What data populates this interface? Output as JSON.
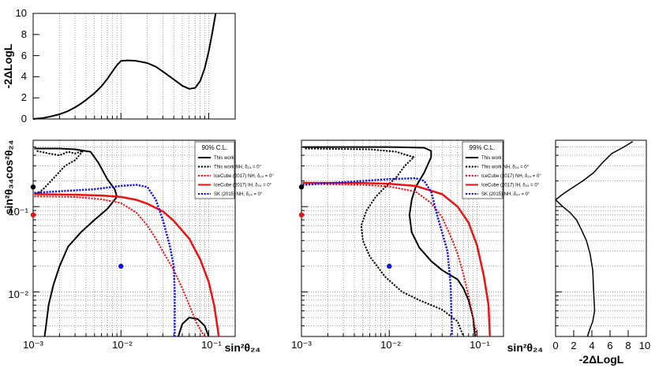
{
  "chart_data": [
    {
      "id": "top",
      "type": "line",
      "description_axis": "log x (shared with main panel), linear y",
      "xscale": "log",
      "xlim": [
        0.001,
        0.2
      ],
      "ylim": [
        0,
        10
      ],
      "yticks": [
        0,
        2,
        4,
        6,
        8,
        10
      ],
      "ylabel": "-2ΔLogL",
      "series": [
        {
          "name": "profile",
          "color": "#000000",
          "dash": "solid",
          "width": 2,
          "points": [
            [
              0.001,
              0
            ],
            [
              0.0013,
              0.1
            ],
            [
              0.0016,
              0.25
            ],
            [
              0.002,
              0.45
            ],
            [
              0.0025,
              0.75
            ],
            [
              0.003,
              1.1
            ],
            [
              0.0035,
              1.45
            ],
            [
              0.004,
              1.8
            ],
            [
              0.005,
              2.45
            ],
            [
              0.006,
              3.1
            ],
            [
              0.007,
              3.8
            ],
            [
              0.008,
              4.5
            ],
            [
              0.009,
              5.1
            ],
            [
              0.01,
              5.5
            ],
            [
              0.012,
              5.55
            ],
            [
              0.015,
              5.5
            ],
            [
              0.02,
              5.3
            ],
            [
              0.025,
              4.95
            ],
            [
              0.03,
              4.5
            ],
            [
              0.04,
              3.75
            ],
            [
              0.05,
              3.15
            ],
            [
              0.06,
              2.85
            ],
            [
              0.07,
              2.95
            ],
            [
              0.08,
              3.6
            ],
            [
              0.09,
              4.8
            ],
            [
              0.1,
              6.4
            ],
            [
              0.11,
              8.2
            ],
            [
              0.12,
              10
            ]
          ]
        }
      ]
    },
    {
      "id": "main90",
      "type": "line",
      "xscale": "log",
      "yscale": "log",
      "xlim": [
        0.001,
        0.2
      ],
      "ylim": [
        0.003,
        0.6
      ],
      "xticks": [
        0.001,
        0.01,
        0.1
      ],
      "xtick_labels": [
        "10⁻³",
        "10⁻²",
        "10⁻¹"
      ],
      "yticks": [
        0.01,
        0.1
      ],
      "ytick_labels": [
        "10⁻²",
        "10⁻¹"
      ],
      "xlabel": "sin²θ₂₄",
      "ylabel": "sin²θ₃₄cos²θ₂₄",
      "legend": {
        "title": "90% C.L.",
        "entries": [
          "This work",
          "This work NH, δ₂₄ = 0°",
          "IceCube (2017) NH, δ₂₄ = 0°",
          "IceCube (2017) IH, δ₂₄ = 0°",
          "SK (2015) NH, δ₂₄ = 0°"
        ]
      },
      "series": [
        {
          "name": "This work",
          "color": "#000000",
          "dash": "solid",
          "width": 2,
          "points": [
            [
              0.00103,
              0.48
            ],
            [
              0.002,
              0.48
            ],
            [
              0.003,
              0.47
            ],
            [
              0.0045,
              0.44
            ],
            [
              0.0055,
              0.33
            ],
            [
              0.007,
              0.21
            ],
            [
              0.0085,
              0.16
            ],
            [
              0.009,
              0.13
            ],
            [
              0.007,
              0.094
            ],
            [
              0.005,
              0.07
            ],
            [
              0.0035,
              0.05
            ],
            [
              0.0025,
              0.034
            ],
            [
              0.002,
              0.02
            ],
            [
              0.0017,
              0.012
            ],
            [
              0.0015,
              0.007
            ],
            [
              0.0014,
              0.004
            ],
            [
              0.00135,
              0.003
            ]
          ]
        },
        {
          "name": "This work lower island",
          "color": "#000000",
          "dash": "solid",
          "width": 2,
          "points": [
            [
              0.045,
              0.003
            ],
            [
              0.05,
              0.0042
            ],
            [
              0.06,
              0.005
            ],
            [
              0.075,
              0.0048
            ],
            [
              0.09,
              0.004
            ],
            [
              0.1,
              0.003
            ]
          ]
        },
        {
          "name": "This work NH, δ24 = 0°",
          "color": "#000000",
          "dash": "dotted",
          "width": 2,
          "points": [
            [
              0.0011,
              0.45
            ],
            [
              0.0015,
              0.42
            ],
            [
              0.002,
              0.4
            ],
            [
              0.0025,
              0.44
            ],
            [
              0.003,
              0.42
            ],
            [
              0.0037,
              0.45
            ],
            [
              0.003,
              0.35
            ],
            [
              0.0023,
              0.3
            ],
            [
              0.0016,
              0.2
            ],
            [
              0.0013,
              0.16
            ],
            [
              0.00115,
              0.145
            ],
            [
              0.00103,
              0.14
            ]
          ]
        },
        {
          "name": "IceCube (2017) NH, δ24 = 0°",
          "color": "#ee1111",
          "dash": "dotted",
          "width": 2,
          "points": [
            [
              0.00103,
              0.132
            ],
            [
              0.003,
              0.13
            ],
            [
              0.006,
              0.122
            ],
            [
              0.01,
              0.11
            ],
            [
              0.015,
              0.085
            ],
            [
              0.02,
              0.06
            ],
            [
              0.025,
              0.042
            ],
            [
              0.03,
              0.03
            ],
            [
              0.04,
              0.018
            ],
            [
              0.05,
              0.011
            ],
            [
              0.06,
              0.007
            ],
            [
              0.07,
              0.0047
            ],
            [
              0.08,
              0.0036
            ],
            [
              0.09,
              0.003
            ]
          ]
        },
        {
          "name": "IceCube (2017) IH, δ24 = 0°",
          "color": "#ee1111",
          "dash": "solid",
          "width": 2.5,
          "points": [
            [
              0.00103,
              0.14
            ],
            [
              0.003,
              0.138
            ],
            [
              0.006,
              0.135
            ],
            [
              0.01,
              0.13
            ],
            [
              0.015,
              0.12
            ],
            [
              0.02,
              0.108
            ],
            [
              0.03,
              0.088
            ],
            [
              0.04,
              0.068
            ],
            [
              0.06,
              0.042
            ],
            [
              0.08,
              0.024
            ],
            [
              0.1,
              0.013
            ],
            [
              0.115,
              0.007
            ],
            [
              0.125,
              0.004
            ],
            [
              0.13,
              0.003
            ]
          ]
        },
        {
          "name": "SK (2015) NH, δ24 = 0°",
          "color": "#1111ee",
          "dash": "dotted",
          "width": 2.5,
          "points": [
            [
              0.00103,
              0.145
            ],
            [
              0.005,
              0.16
            ],
            [
              0.01,
              0.175
            ],
            [
              0.015,
              0.18
            ],
            [
              0.02,
              0.17
            ],
            [
              0.025,
              0.12
            ],
            [
              0.03,
              0.07
            ],
            [
              0.036,
              0.035
            ],
            [
              0.04,
              0.02
            ],
            [
              0.041,
              0.01
            ],
            [
              0.041,
              0.003
            ]
          ]
        }
      ],
      "markers": [
        {
          "name": "black point",
          "x": 0.001,
          "y": 0.17,
          "color": "#000000"
        },
        {
          "name": "red point",
          "x": 0.001,
          "y": 0.08,
          "color": "#ee1111"
        },
        {
          "name": "blue point",
          "x": 0.01,
          "y": 0.02,
          "color": "#1111ee"
        }
      ]
    },
    {
      "id": "main99",
      "type": "line",
      "xscale": "log",
      "yscale": "log",
      "xlim": [
        0.001,
        0.2
      ],
      "ylim": [
        0.003,
        0.6
      ],
      "xticks": [
        0.001,
        0.01,
        0.1
      ],
      "xtick_labels": [
        "10⁻³",
        "10⁻²",
        "10⁻¹"
      ],
      "xlabel": "sin²θ₂₄",
      "legend": {
        "title": "99% C.L.",
        "entries": [
          "This work",
          "This work NH, δ₂₄ = 0°",
          "IceCube (2017) NH, δ₂₄ = 0°",
          "IceCube (2017) IH, δ₂₄ = 0°",
          "SK (2015) NH, δ₂₄ = 0°"
        ]
      },
      "series": [
        {
          "name": "This work",
          "color": "#000000",
          "dash": "solid",
          "width": 2,
          "points": [
            [
              0.00103,
              0.5
            ],
            [
              0.01,
              0.5
            ],
            [
              0.025,
              0.49
            ],
            [
              0.03,
              0.45
            ],
            [
              0.03,
              0.38
            ],
            [
              0.025,
              0.25
            ],
            [
              0.02,
              0.17
            ],
            [
              0.018,
              0.12
            ],
            [
              0.017,
              0.08
            ],
            [
              0.018,
              0.05
            ],
            [
              0.022,
              0.033
            ],
            [
              0.03,
              0.023
            ],
            [
              0.04,
              0.018
            ],
            [
              0.06,
              0.014
            ],
            [
              0.07,
              0.011
            ],
            [
              0.08,
              0.008
            ],
            [
              0.09,
              0.005
            ],
            [
              0.095,
              0.003
            ]
          ]
        },
        {
          "name": "This work NH, δ24 = 0°",
          "color": "#000000",
          "dash": "dotted",
          "width": 2,
          "points": [
            [
              0.0011,
              0.48
            ],
            [
              0.006,
              0.47
            ],
            [
              0.012,
              0.44
            ],
            [
              0.019,
              0.38
            ],
            [
              0.015,
              0.3
            ],
            [
              0.012,
              0.22
            ],
            [
              0.009,
              0.17
            ],
            [
              0.007,
              0.13
            ],
            [
              0.0055,
              0.09
            ],
            [
              0.0048,
              0.06
            ],
            [
              0.005,
              0.04
            ],
            [
              0.006,
              0.026
            ],
            [
              0.009,
              0.015
            ],
            [
              0.014,
              0.01
            ],
            [
              0.022,
              0.008
            ],
            [
              0.04,
              0.0062
            ],
            [
              0.06,
              0.0045
            ],
            [
              0.07,
              0.003
            ]
          ]
        },
        {
          "name": "IceCube (2017) NH, δ24 = 0°",
          "color": "#ee1111",
          "dash": "dotted",
          "width": 2,
          "points": [
            [
              0.00103,
              0.185
            ],
            [
              0.005,
              0.18
            ],
            [
              0.01,
              0.172
            ],
            [
              0.02,
              0.15
            ],
            [
              0.03,
              0.11
            ],
            [
              0.04,
              0.075
            ],
            [
              0.05,
              0.045
            ],
            [
              0.06,
              0.028
            ],
            [
              0.07,
              0.016
            ],
            [
              0.08,
              0.009
            ],
            [
              0.09,
              0.005
            ],
            [
              0.1,
              0.003
            ]
          ]
        },
        {
          "name": "IceCube (2017) IH, δ24 = 0°",
          "color": "#ee1111",
          "dash": "solid",
          "width": 2.5,
          "points": [
            [
              0.00103,
              0.19
            ],
            [
              0.005,
              0.189
            ],
            [
              0.01,
              0.185
            ],
            [
              0.02,
              0.175
            ],
            [
              0.04,
              0.14
            ],
            [
              0.06,
              0.1
            ],
            [
              0.08,
              0.065
            ],
            [
              0.1,
              0.035
            ],
            [
              0.12,
              0.015
            ],
            [
              0.135,
              0.007
            ],
            [
              0.14,
              0.003
            ]
          ]
        },
        {
          "name": "SK (2015) NH, δ24 = 0°",
          "color": "#1111ee",
          "dash": "dotted",
          "width": 2.5,
          "points": [
            [
              0.00103,
              0.18
            ],
            [
              0.005,
              0.2
            ],
            [
              0.01,
              0.21
            ],
            [
              0.02,
              0.215
            ],
            [
              0.025,
              0.2
            ],
            [
              0.03,
              0.15
            ],
            [
              0.035,
              0.08
            ],
            [
              0.04,
              0.05
            ],
            [
              0.046,
              0.03
            ],
            [
              0.05,
              0.012
            ],
            [
              0.052,
              0.003
            ]
          ]
        }
      ],
      "markers": [
        {
          "name": "black point",
          "x": 0.001,
          "y": 0.17,
          "color": "#000000"
        },
        {
          "name": "red point",
          "x": 0.001,
          "y": 0.08,
          "color": "#ee1111"
        },
        {
          "name": "blue point",
          "x": 0.01,
          "y": 0.02,
          "color": "#1111ee"
        }
      ]
    },
    {
      "id": "right",
      "type": "line",
      "description_axis": "linear x, log y (shared with main panel)",
      "xlim": [
        0,
        10
      ],
      "xticks": [
        0,
        2,
        4,
        6,
        8,
        10
      ],
      "yscale": "log",
      "ylim": [
        0.003,
        0.6
      ],
      "xlabel": "-2ΔLogL",
      "series": [
        {
          "name": "profile",
          "color": "#000000",
          "dash": "solid",
          "width": 1.5,
          "points": [
            [
              8.5,
              0.58
            ],
            [
              7.5,
              0.5
            ],
            [
              6.2,
              0.42
            ],
            [
              5.2,
              0.33
            ],
            [
              4.2,
              0.25
            ],
            [
              3.0,
              0.2
            ],
            [
              1.6,
              0.16
            ],
            [
              0.8,
              0.14
            ],
            [
              0,
              0.12
            ],
            [
              0.8,
              0.1
            ],
            [
              1.6,
              0.085
            ],
            [
              2.3,
              0.07
            ],
            [
              2.8,
              0.055
            ],
            [
              3.4,
              0.04
            ],
            [
              3.8,
              0.028
            ],
            [
              4.1,
              0.018
            ],
            [
              4.2,
              0.01
            ],
            [
              4.3,
              0.006
            ],
            [
              4.1,
              0.0045
            ],
            [
              3.8,
              0.0037
            ],
            [
              3.5,
              0.003
            ]
          ]
        }
      ]
    }
  ]
}
